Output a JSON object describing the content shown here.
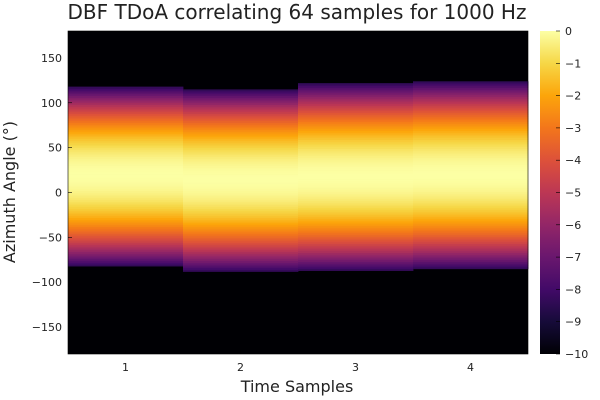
{
  "chart_data": {
    "type": "heatmap",
    "title": "DBF TDoA correlating 64 samples for 1000 Hz",
    "xlabel": "Time Samples",
    "ylabel": "Azimuth Angle (°)",
    "x": [
      1,
      2,
      3,
      4
    ],
    "xlim": [
      0.5,
      4.5
    ],
    "ylim": [
      -180,
      180
    ],
    "xticks": [
      1,
      2,
      3,
      4
    ],
    "yticks": [
      150,
      100,
      50,
      0,
      -50,
      -100,
      -150
    ],
    "ytick_labels": [
      "150",
      "100",
      "50",
      "0",
      "−50",
      "−100",
      "−150"
    ],
    "grid": false,
    "colormap": "inferno",
    "colorbar": {
      "range": [
        -10,
        0
      ],
      "ticks": [
        0,
        -1,
        -2,
        -3,
        -4,
        -5,
        -6,
        -7,
        -8,
        -9,
        -10
      ],
      "tick_labels": [
        "0",
        "−1",
        "−2",
        "−3",
        "−4",
        "−5",
        "−6",
        "−7",
        "−8",
        "−9",
        "−10"
      ]
    },
    "columns": [
      {
        "x": 1,
        "peak_angle": 20,
        "lower_edge": -82,
        "upper_edge": 118
      },
      {
        "x": 2,
        "peak_angle": 15,
        "lower_edge": -88,
        "upper_edge": 115
      },
      {
        "x": 3,
        "peak_angle": 18,
        "lower_edge": -87,
        "upper_edge": 122
      },
      {
        "x": 4,
        "peak_angle": 20,
        "lower_edge": -85,
        "upper_edge": 124
      }
    ]
  }
}
